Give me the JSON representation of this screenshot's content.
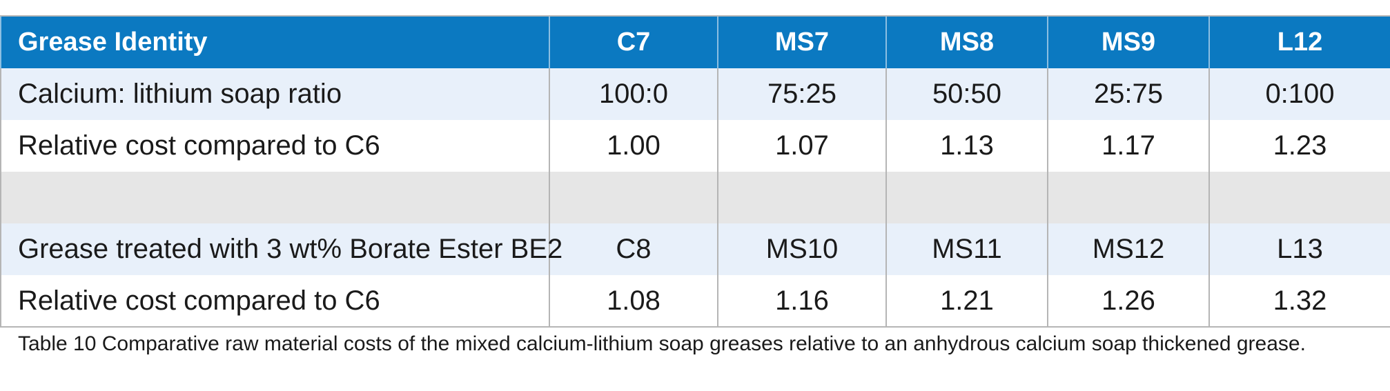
{
  "table": {
    "header": [
      "Grease Identity",
      "C7",
      "MS7",
      "MS8",
      "MS9",
      "L12"
    ],
    "rows": [
      {
        "cells": [
          "Calcium: lithium soap ratio",
          "100:0",
          "75:25",
          "50:50",
          "25:75",
          "0:100"
        ]
      },
      {
        "cells": [
          "Relative cost compared to C6",
          "1.00",
          "1.07",
          "1.13",
          "1.17",
          "1.23"
        ]
      },
      {
        "cells": [
          "",
          "",
          "",
          "",
          "",
          ""
        ]
      },
      {
        "cells": [
          "Grease treated with 3 wt% Borate Ester BE2",
          "C8",
          "MS10",
          "MS11",
          "MS12",
          "L13"
        ]
      },
      {
        "cells": [
          "Relative cost compared to C6",
          "1.08",
          "1.16",
          "1.21",
          "1.26",
          "1.32"
        ]
      }
    ]
  },
  "caption": "Table 10 Comparative raw material costs of the mixed calcium-lithium soap greases relative to an anhydrous calcium soap thickened grease.",
  "colors": {
    "header_background": "#0b79c1",
    "header_text": "#ffffff",
    "light_row": "#e8f0fa",
    "white_row": "#ffffff",
    "separator_row": "#e6e6e6"
  }
}
